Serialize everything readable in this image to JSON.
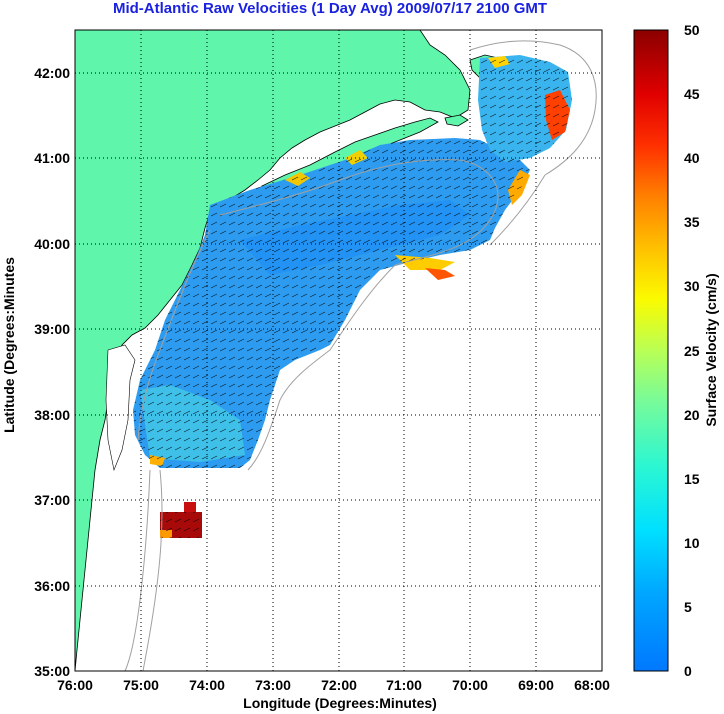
{
  "title": "Mid-Atlantic Raw Velocities (1 Day Avg) 2009/07/17 2100 GMT",
  "map": {
    "xlabel": "Longitude (Degrees:Minutes)",
    "ylabel": "Latitude (Degrees:Minutes",
    "lon_range": [
      -76,
      -68
    ],
    "lat_range": [
      35,
      42.5
    ],
    "x_ticks": [
      "76:00",
      "75:00",
      "74:00",
      "73:00",
      "72:00",
      "71:00",
      "70:00",
      "69:00",
      "68:00"
    ],
    "y_ticks": [
      "35:00",
      "36:00",
      "37:00",
      "38:00",
      "39:00",
      "40:00",
      "41:00",
      "42:00"
    ],
    "grid": true,
    "land_color": "#5ff5ab",
    "coast_color": "#000000",
    "bathymetry_color": "#a0a0a0"
  },
  "colorbar": {
    "label": "Surface Velocity (cm/s)",
    "min": 0,
    "max": 50,
    "ticks": [
      "0",
      "5",
      "10",
      "15",
      "20",
      "25",
      "30",
      "35",
      "40",
      "45",
      "50"
    ],
    "colormap": "jet"
  }
}
